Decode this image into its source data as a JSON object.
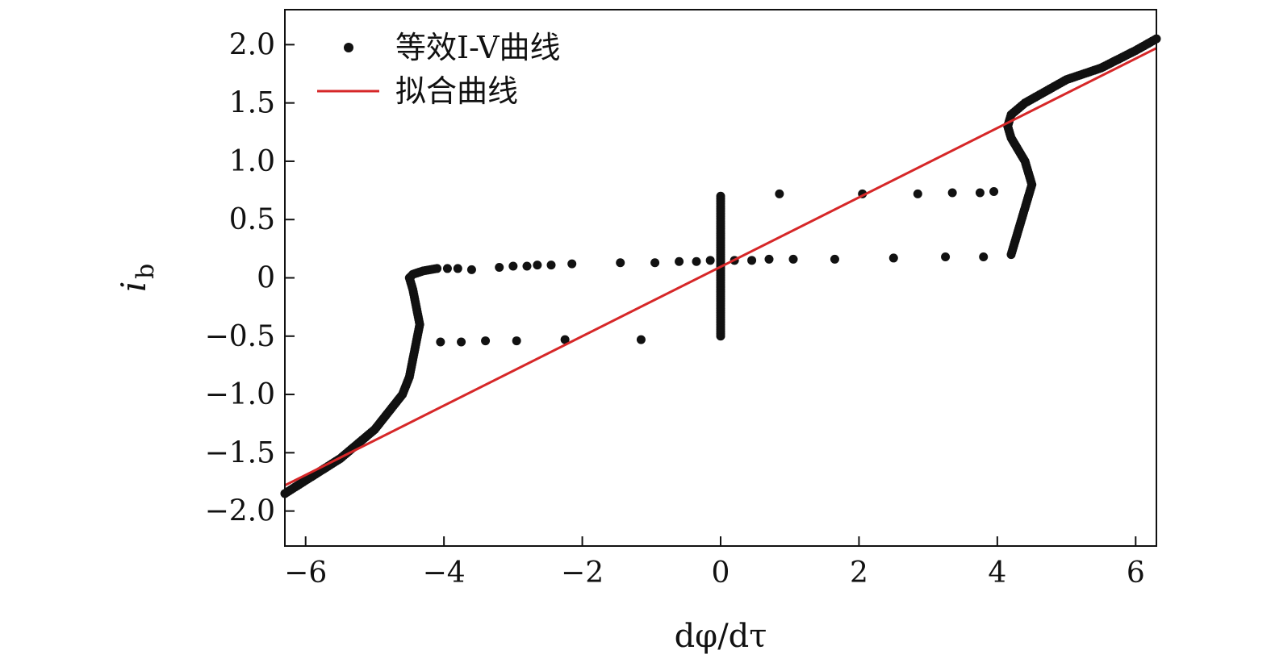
{
  "chart_data": {
    "type": "scatter",
    "xlabel": "dφ/dτ",
    "ylabel_main": "i",
    "ylabel_sub": "b",
    "xlim": [
      -6.3,
      6.3
    ],
    "ylim": [
      -2.3,
      2.3
    ],
    "x_ticks": [
      -6,
      -4,
      -2,
      0,
      2,
      4,
      6
    ],
    "x_tick_labels": [
      "−6",
      "−4",
      "−2",
      "0",
      "2",
      "4",
      "6"
    ],
    "y_ticks": [
      -2.0,
      -1.5,
      -1.0,
      -0.5,
      0,
      0.5,
      1.0,
      1.5,
      2.0
    ],
    "y_tick_labels": [
      "−2.0",
      "−1.5",
      "−1.0",
      "−0.5",
      "0",
      "0.5",
      "1.0",
      "1.5",
      "2.0"
    ],
    "grid": false,
    "legend_position": "top-left",
    "colors": {
      "scatter": "#111111",
      "fit": "#d62728"
    },
    "series": [
      {
        "name": "等效I-V曲线",
        "kind": "scatter",
        "segments": [
          {
            "x": [
              -6.3,
              -5.5,
              -5.0,
              -4.8,
              -4.6,
              -4.5,
              -4.45,
              -4.4,
              -4.35,
              -4.4,
              -4.45,
              -4.5,
              -4.45,
              -4.3,
              -4.1
            ],
            "y": [
              -1.85,
              -1.55,
              -1.3,
              -1.15,
              -1.0,
              -0.85,
              -0.7,
              -0.55,
              -0.4,
              -0.25,
              -0.1,
              0.0,
              0.03,
              0.06,
              0.08
            ]
          },
          {
            "x": [
              4.2,
              4.25,
              4.3,
              4.35,
              4.4,
              4.45,
              4.5,
              4.45,
              4.4,
              4.3,
              4.2,
              4.15,
              4.2,
              4.4,
              4.7,
              5.0,
              5.5,
              6.0,
              6.3
            ],
            "y": [
              0.2,
              0.3,
              0.4,
              0.5,
              0.6,
              0.7,
              0.8,
              0.9,
              1.0,
              1.1,
              1.2,
              1.3,
              1.4,
              1.5,
              1.6,
              1.7,
              1.8,
              1.95,
              2.05
            ]
          },
          {
            "x": [
              0.0,
              0.0,
              0.0,
              0.0,
              0.0,
              0.0,
              0.0,
              0.0,
              0.0,
              0.0,
              0.0,
              0.0
            ],
            "y": [
              -0.5,
              -0.4,
              -0.3,
              -0.2,
              -0.1,
              0.0,
              0.1,
              0.2,
              0.3,
              0.4,
              0.55,
              0.7
            ]
          }
        ],
        "points": {
          "x": [
            -3.95,
            -3.8,
            -3.6,
            -3.2,
            -3.0,
            -2.8,
            -2.65,
            -2.45,
            -2.15,
            -1.45,
            -0.95,
            -0.6,
            -0.35,
            -0.15,
            0.2,
            0.45,
            0.7,
            1.05,
            1.65,
            2.5,
            3.25,
            3.8,
            -4.05,
            -3.75,
            -3.4,
            -2.95,
            -2.25,
            -1.15,
            0.85,
            2.05,
            2.85,
            3.35,
            3.75,
            3.95
          ],
          "y": [
            0.08,
            0.08,
            0.07,
            0.09,
            0.1,
            0.1,
            0.11,
            0.11,
            0.12,
            0.13,
            0.13,
            0.14,
            0.14,
            0.15,
            0.15,
            0.15,
            0.16,
            0.16,
            0.16,
            0.17,
            0.18,
            0.18,
            -0.55,
            -0.55,
            -0.54,
            -0.54,
            -0.53,
            -0.53,
            0.72,
            0.72,
            0.72,
            0.73,
            0.73,
            0.74
          ]
        }
      },
      {
        "name": "拟合曲线",
        "kind": "line",
        "x": [
          -6.3,
          6.3
        ],
        "y": [
          -1.78,
          1.97
        ]
      }
    ]
  }
}
